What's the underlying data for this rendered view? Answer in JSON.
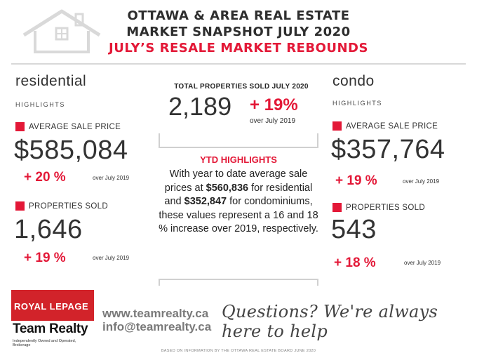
{
  "header": {
    "line1": "OTTAWA & AREA REAL ESTATE",
    "line2": "MARKET SNAPSHOT JULY 2020",
    "line3": "JULY’S RESALE MARKET REBOUNDS"
  },
  "residential": {
    "title": "residential",
    "subtitle": "HIGHLIGHTS",
    "avg_label": "AVERAGE SALE PRICE",
    "avg_value": "$585,084",
    "avg_change": "+ 20 %",
    "avg_note": "over July  2019",
    "sold_label": "PROPERTIES SOLD",
    "sold_value": "1,646",
    "sold_change": "+ 19 %",
    "sold_note": "over July 2019"
  },
  "center": {
    "total_heading": "TOTAL PROPERTIES SOLD JULY 2020",
    "total_value": "2,189",
    "total_change": "+ 19%",
    "total_note": "over July 2019",
    "ytd_title": "YTD HIGHLIGHTS",
    "ytd_p1": "With year to date average sale prices at ",
    "ytd_res": "$560,836",
    "ytd_p2": " for residential and ",
    "ytd_condo": "$352,847",
    "ytd_p3": " for condominiums, these values represent a 16 and 18 % increase over 2019, respectively."
  },
  "condo": {
    "title": "condo",
    "subtitle": "HIGHLIGHTS",
    "avg_label": "AVERAGE SALE PRICE",
    "avg_value": "$357,764",
    "avg_change": "+ 19 %",
    "avg_note": "over  July  2019",
    "sold_label": "PROPERTIES SOLD",
    "sold_value": "543",
    "sold_change": "+ 18 %",
    "sold_note": "over July 2019"
  },
  "footer": {
    "logo_line1": "ROYAL LEPAGE",
    "logo_line2": "Team Realty",
    "logo_line3": "Independently Owned and Operated, Brokerage",
    "website": "www.teamrealty.ca",
    "email": "info@teamrealty.ca",
    "questions": "Questions? We're always here to help",
    "source": "BASED ON INFORMATION BY THE OTTAWA REAL ESTATE BOARD JUNE 2020"
  },
  "colors": {
    "accent": "#e31837",
    "text": "#2e2e2e",
    "logo_red": "#d2232a"
  },
  "icons": {
    "house": "house-outline-icon"
  }
}
